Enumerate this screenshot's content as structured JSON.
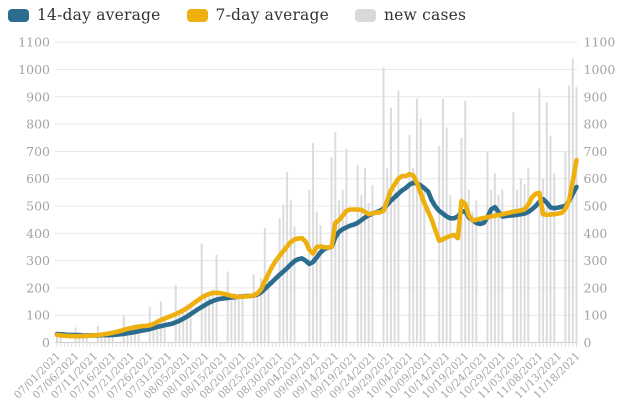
{
  "legend": {
    "items": [
      {
        "label": "14-day average",
        "color": "#2b6c8f"
      },
      {
        "label": "7-day average",
        "color": "#eeb00e"
      },
      {
        "label": "new cases",
        "color": "#d9d9d9"
      }
    ]
  },
  "colors": {
    "grid": "#e7e7e7",
    "baseline": "#cfcfcf",
    "bar": "#dcdcdc",
    "axis_text": "#a3a3a3",
    "tick": "#d8d8d8"
  },
  "chart_data": {
    "type": "line",
    "title": "",
    "xlabel": "",
    "ylabel": "",
    "ylim": [
      0,
      1100
    ],
    "y_ticks": [
      0,
      100,
      200,
      300,
      400,
      500,
      600,
      700,
      800,
      900,
      1000,
      1100
    ],
    "grid": "horizontal",
    "legend_position": "top-left",
    "x_tick_labels": [
      "07/01/2021",
      "07/06/2021",
      "07/11/2021",
      "07/16/2021",
      "07/21/2021",
      "07/26/2021",
      "07/31/2021",
      "08/05/2021",
      "08/10/2021",
      "08/15/2021",
      "08/20/2021",
      "08/25/2021",
      "08/30/2021",
      "09/04/2021",
      "09/09/2021",
      "09/14/2021",
      "09/19/2021",
      "09/24/2021",
      "09/29/2021",
      "10/04/2021",
      "10/09/2021",
      "10/14/2021",
      "10/19/2021",
      "10/24/2021",
      "10/29/2021",
      "11/03/2021",
      "11/08/2021",
      "11/13/2021",
      "11/18/2021"
    ],
    "x_tick_every_n_days": 5,
    "date_range": {
      "start": "07/01/2021",
      "end": "11/18/2021",
      "days": 141
    },
    "series": [
      {
        "name": "14-day average",
        "type": "line",
        "color": "#2b6c8f",
        "values": [
          31,
          30,
          29,
          28,
          28,
          27,
          27,
          26,
          26,
          26,
          26,
          26,
          27,
          27,
          27,
          28,
          29,
          30,
          32,
          34,
          36,
          38,
          41,
          44,
          46,
          49,
          53,
          57,
          60,
          63,
          66,
          69,
          74,
          80,
          87,
          95,
          104,
          113,
          122,
          130,
          138,
          146,
          152,
          157,
          160,
          162,
          163,
          165,
          166,
          168,
          169,
          170,
          170,
          172,
          176,
          184,
          196,
          209,
          222,
          235,
          248,
          260,
          272,
          286,
          298,
          305,
          308,
          300,
          288,
          295,
          312,
          330,
          342,
          347,
          350,
          385,
          405,
          415,
          422,
          428,
          432,
          438,
          448,
          458,
          466,
          472,
          477,
          482,
          490,
          505,
          520,
          532,
          545,
          557,
          566,
          578,
          585,
          582,
          576,
          565,
          553,
          520,
          498,
          482,
          472,
          462,
          455,
          455,
          462,
          478,
          482,
          458,
          448,
          438,
          434,
          438,
          458,
          488,
          496,
          478,
          462,
          463,
          465,
          466,
          468,
          470,
          472,
          478,
          488,
          500,
          515,
          525,
          512,
          495,
          492,
          494,
          497,
          500,
          518,
          545,
          570
        ]
      },
      {
        "name": "7-day average",
        "type": "line",
        "color": "#eeb00e",
        "values": [
          28,
          26,
          25,
          24,
          23,
          23,
          23,
          24,
          24,
          25,
          26,
          27,
          29,
          31,
          33,
          36,
          39,
          42,
          46,
          50,
          53,
          56,
          58,
          60,
          61,
          63,
          68,
          75,
          82,
          88,
          93,
          98,
          104,
          111,
          118,
          126,
          135,
          145,
          155,
          165,
          172,
          178,
          181,
          182,
          181,
          178,
          175,
          171,
          168,
          167,
          168,
          169,
          170,
          173,
          180,
          195,
          225,
          252,
          278,
          300,
          318,
          335,
          352,
          368,
          377,
          381,
          382,
          370,
          340,
          326,
          350,
          352,
          349,
          348,
          350,
          438,
          448,
          465,
          482,
          487,
          487,
          487,
          486,
          478,
          470,
          473,
          476,
          477,
          482,
          520,
          558,
          580,
          600,
          610,
          610,
          617,
          612,
          585,
          548,
          510,
          480,
          450,
          410,
          373,
          378,
          385,
          390,
          394,
          382,
          518,
          508,
          465,
          447,
          450,
          453,
          456,
          459,
          462,
          464,
          467,
          470,
          473,
          476,
          479,
          481,
          484,
          487,
          505,
          532,
          545,
          548,
          470,
          468,
          469,
          470,
          472,
          475,
          490,
          520,
          590,
          668
        ]
      },
      {
        "name": "new cases",
        "type": "bar",
        "color": "#dcdcdc",
        "values": [
          35,
          28,
          0,
          0,
          0,
          55,
          30,
          32,
          25,
          0,
          0,
          60,
          35,
          30,
          38,
          30,
          0,
          0,
          100,
          45,
          60,
          55,
          48,
          0,
          0,
          130,
          75,
          85,
          150,
          90,
          0,
          0,
          210,
          110,
          120,
          140,
          130,
          0,
          0,
          363,
          170,
          180,
          195,
          320,
          0,
          0,
          260,
          155,
          180,
          170,
          165,
          0,
          0,
          250,
          180,
          235,
          420,
          260,
          0,
          0,
          455,
          505,
          626,
          520,
          425,
          0,
          0,
          0,
          560,
          730,
          480,
          430,
          0,
          0,
          680,
          770,
          520,
          560,
          710,
          0,
          0,
          650,
          540,
          641,
          510,
          575,
          0,
          0,
          1007,
          640,
          861,
          560,
          923,
          0,
          0,
          760,
          640,
          894,
          820,
          560,
          0,
          0,
          0,
          720,
          893,
          788,
          540,
          0,
          0,
          750,
          886,
          560,
          480,
          520,
          0,
          0,
          700,
          560,
          620,
          540,
          560,
          0,
          0,
          843,
          560,
          600,
          580,
          640,
          0,
          0,
          930,
          600,
          880,
          758,
          620,
          0,
          0,
          700,
          941,
          1040,
          935
        ]
      }
    ]
  }
}
